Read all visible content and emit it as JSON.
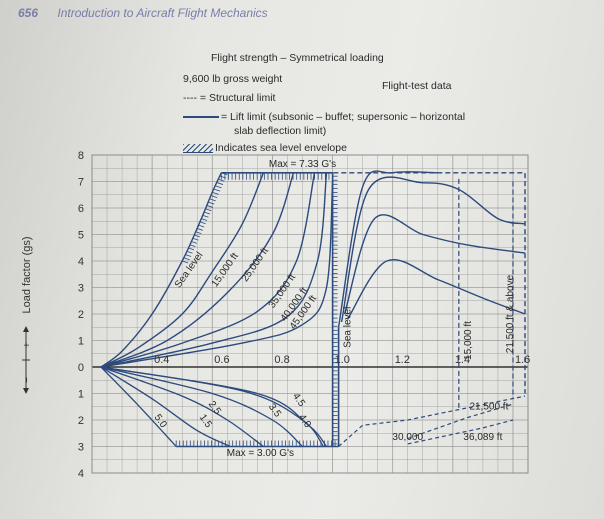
{
  "header": {
    "page_number": "656",
    "book_title": "Introduction to Aircraft Flight Mechanics"
  },
  "legend": {
    "title": "Flight strength – Symmetrical loading",
    "weight": "9,600 lb gross weight",
    "source": "Flight-test data",
    "structural": "---- = Structural limit",
    "lift_line1": "= Lift limit (subsonic – buffet; supersonic – horizontal",
    "lift_line2": "slab deflection limit)",
    "sea_level": "Indicates sea level envelope"
  },
  "chart_data": {
    "type": "line",
    "ylabel": "Load factor (gs)",
    "y_sign_labels": [
      "−",
      "+"
    ],
    "xlim": [
      0.2,
      1.65
    ],
    "ylim": [
      -4,
      8
    ],
    "x_ticks": [
      {
        "value": 0.4,
        "label": "0.4"
      },
      {
        "value": 0.6,
        "label": "0.6"
      },
      {
        "value": 0.8,
        "label": "0.8"
      },
      {
        "value": 1.0,
        "label": "1.0"
      },
      {
        "value": 1.2,
        "label": "1.2"
      },
      {
        "value": 1.4,
        "label": "1.4"
      },
      {
        "value": 1.6,
        "label": "1.6"
      }
    ],
    "y_ticks": [
      {
        "value": 8,
        "label": "8"
      },
      {
        "value": 7,
        "label": "7"
      },
      {
        "value": 6,
        "label": "6"
      },
      {
        "value": 5,
        "label": "5"
      },
      {
        "value": 4,
        "label": "4"
      },
      {
        "value": 3,
        "label": "3"
      },
      {
        "value": 2,
        "label": "2"
      },
      {
        "value": 1,
        "label": "1"
      },
      {
        "value": 0,
        "label": "0"
      },
      {
        "value": -1,
        "label": "1"
      },
      {
        "value": -2,
        "label": "2"
      },
      {
        "value": -3,
        "label": "3"
      },
      {
        "value": -4,
        "label": "4"
      }
    ],
    "colors": {
      "curve": "#2c4a7c",
      "grid": "#8c8c8c",
      "axis": "#333333"
    },
    "positive_curves": [
      {
        "name": "Sea level",
        "points": [
          [
            0.23,
            0
          ],
          [
            0.3,
            0.6
          ],
          [
            0.4,
            2.0
          ],
          [
            0.5,
            4.0
          ],
          [
            0.56,
            5.5
          ],
          [
            0.6,
            6.6
          ],
          [
            0.63,
            7.33
          ]
        ]
      },
      {
        "name": "15,000 ft",
        "points": [
          [
            0.23,
            0
          ],
          [
            0.35,
            0.7
          ],
          [
            0.5,
            2.0
          ],
          [
            0.6,
            3.6
          ],
          [
            0.7,
            5.4
          ],
          [
            0.77,
            7.33
          ]
        ]
      },
      {
        "name": "25,000 ft",
        "points": [
          [
            0.23,
            0
          ],
          [
            0.45,
            1.0
          ],
          [
            0.65,
            2.8
          ],
          [
            0.8,
            5.0
          ],
          [
            0.87,
            7.33
          ]
        ]
      },
      {
        "name": "35,000 ft",
        "points": [
          [
            0.23,
            0
          ],
          [
            0.5,
            0.9
          ],
          [
            0.75,
            2.1
          ],
          [
            0.88,
            4.0
          ],
          [
            0.94,
            7.33
          ]
        ]
      },
      {
        "name": "40,000 ft",
        "points": [
          [
            0.23,
            0
          ],
          [
            0.6,
            0.9
          ],
          [
            0.85,
            1.9
          ],
          [
            0.95,
            4.0
          ],
          [
            0.98,
            7.33
          ]
        ]
      },
      {
        "name": "45,000 ft",
        "points": [
          [
            0.23,
            0
          ],
          [
            0.7,
            0.9
          ],
          [
            0.9,
            1.6
          ],
          [
            0.98,
            3.0
          ],
          [
            1.0,
            7.0
          ]
        ]
      }
    ],
    "supersonic_curves": [
      {
        "points": [
          [
            1.02,
            1.5
          ],
          [
            1.1,
            6.8
          ],
          [
            1.2,
            7.33
          ],
          [
            1.35,
            7.33
          ]
        ]
      },
      {
        "points": [
          [
            1.03,
            1.7
          ],
          [
            1.12,
            6.7
          ],
          [
            1.3,
            6.95
          ],
          [
            1.42,
            6.7
          ],
          [
            1.55,
            5.6
          ],
          [
            1.64,
            5.4
          ]
        ]
      },
      {
        "points": [
          [
            1.04,
            2.0
          ],
          [
            1.14,
            5.6
          ],
          [
            1.3,
            5.0
          ],
          [
            1.45,
            4.6
          ],
          [
            1.64,
            4.3
          ]
        ]
      },
      {
        "points": [
          [
            1.05,
            1.8
          ],
          [
            1.18,
            4.0
          ],
          [
            1.35,
            3.3
          ],
          [
            1.5,
            2.6
          ],
          [
            1.64,
            2.0
          ]
        ]
      }
    ],
    "negative_curves": [
      {
        "name": "5.0",
        "points": [
          [
            0.23,
            0
          ],
          [
            0.35,
            -1.4
          ],
          [
            0.48,
            -3.0
          ]
        ]
      },
      {
        "name": "1.5",
        "points": [
          [
            0.23,
            0
          ],
          [
            0.4,
            -1.2
          ],
          [
            0.55,
            -2.4
          ],
          [
            0.66,
            -3.0
          ]
        ]
      },
      {
        "name": "2.5",
        "points": [
          [
            0.23,
            0
          ],
          [
            0.5,
            -1.1
          ],
          [
            0.65,
            -2.0
          ],
          [
            0.77,
            -3.0
          ]
        ]
      },
      {
        "name": "3.5",
        "points": [
          [
            0.23,
            0
          ],
          [
            0.6,
            -1.0
          ],
          [
            0.8,
            -2.0
          ],
          [
            0.9,
            -3.0
          ]
        ]
      },
      {
        "name": "4.5",
        "points": [
          [
            0.23,
            0
          ],
          [
            0.7,
            -0.9
          ],
          [
            0.9,
            -2.0
          ],
          [
            0.97,
            -3.0
          ]
        ]
      },
      {
        "name": "4.0",
        "points": [
          [
            0.23,
            0
          ],
          [
            0.75,
            -1.0
          ],
          [
            0.92,
            -2.2
          ],
          [
            0.98,
            -3.0
          ]
        ]
      }
    ],
    "sea_level_envelope": {
      "top": [
        [
          0.63,
          7.33
        ],
        [
          1.0,
          7.33
        ]
      ],
      "right": [
        [
          1.02,
          1.5
        ],
        [
          1.02,
          -3.0
        ]
      ],
      "bottom": [
        [
          0.48,
          -3.0
        ],
        [
          1.02,
          -3.0
        ]
      ]
    },
    "structural_limit": [
      [
        0.63,
        7.33
      ],
      [
        1.64,
        7.33
      ],
      [
        1.64,
        -1.0
      ]
    ],
    "sea_level_vertical": [
      [
        1.0,
        7.33
      ],
      [
        1.0,
        -3.0
      ]
    ],
    "negative_right_limit": [
      [
        1.02,
        -3.0
      ],
      [
        1.1,
        -2.2
      ],
      [
        1.25,
        -2.0
      ],
      [
        1.64,
        -1.1
      ]
    ],
    "negative_dashes": [
      {
        "name": "21,500 ft",
        "points": [
          [
            1.25,
            -2.7
          ],
          [
            1.45,
            -1.9
          ],
          [
            1.6,
            -1.4
          ]
        ]
      },
      {
        "name": "36,089 ft",
        "points": [
          [
            1.25,
            -2.9
          ],
          [
            1.5,
            -2.3
          ],
          [
            1.6,
            -2.0
          ]
        ]
      }
    ],
    "vertical_dashes": [
      {
        "name": "15,000 ft",
        "x": 1.42,
        "y_top": 7.1,
        "y_bot": -1.6
      },
      {
        "name": "21,500 ft & above",
        "x": 1.6,
        "y_top": 7.0,
        "y_bot": -1.2
      }
    ],
    "annotations": [
      {
        "text": "Max = 7.33 G's",
        "x": 0.9,
        "y": 7.55
      },
      {
        "text": "Max = 3.00 G's",
        "x": 0.76,
        "y": -3.35
      },
      {
        "text": "Sea level",
        "x": 0.53,
        "y": 3.6,
        "rotate": -55
      },
      {
        "text": "15,000 ft",
        "x": 0.65,
        "y": 3.6,
        "rotate": -55
      },
      {
        "text": "25,000 ft",
        "x": 0.75,
        "y": 3.8,
        "rotate": -55
      },
      {
        "text": "35,000 ft",
        "x": 0.84,
        "y": 2.8,
        "rotate": -55
      },
      {
        "text": "40,000 ft",
        "x": 0.88,
        "y": 2.3,
        "rotate": -55
      },
      {
        "text": "45,000 ft",
        "x": 0.91,
        "y": 2.0,
        "rotate": -55
      },
      {
        "text": "Sea level",
        "x": 1.06,
        "y": 1.5,
        "rotate": -90
      },
      {
        "text": "15,000 ft",
        "x": 1.46,
        "y": 1.0,
        "rotate": -90
      },
      {
        "text": "21,500 ft & above",
        "x": 1.6,
        "y": 2.0,
        "rotate": -90
      },
      {
        "text": "5.0",
        "x": 0.42,
        "y": -2.1,
        "rotate": 55
      },
      {
        "text": "1.5",
        "x": 0.57,
        "y": -2.1,
        "rotate": 55
      },
      {
        "text": "2.5",
        "x": 0.6,
        "y": -1.6,
        "rotate": 55
      },
      {
        "text": "3.5",
        "x": 0.8,
        "y": -1.7,
        "rotate": 55
      },
      {
        "text": "4.5",
        "x": 0.88,
        "y": -1.3,
        "rotate": 55
      },
      {
        "text": "4.0",
        "x": 0.9,
        "y": -2.1,
        "rotate": 55
      },
      {
        "text": "21,500 ft",
        "x": 1.52,
        "y": -1.6,
        "rotate": 0
      },
      {
        "text": "36,089 ft",
        "x": 1.5,
        "y": -2.75,
        "rotate": 0
      },
      {
        "text": "30,000",
        "x": 1.25,
        "y": -2.75,
        "rotate": 0
      }
    ]
  }
}
